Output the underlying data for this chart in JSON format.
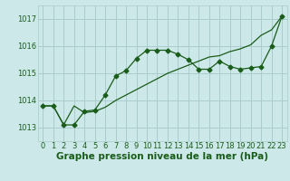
{
  "bg_color": "#cce8e8",
  "grid_color": "#aacccc",
  "line_color": "#1a5c1a",
  "text_color": "#1a5c1a",
  "xlabel": "Graphe pression niveau de la mer (hPa)",
  "ylim": [
    1012.5,
    1017.5
  ],
  "yticks": [
    1013,
    1014,
    1015,
    1016,
    1017
  ],
  "xlim": [
    -0.5,
    23.5
  ],
  "xticks": [
    0,
    1,
    2,
    3,
    4,
    5,
    6,
    7,
    8,
    9,
    10,
    11,
    12,
    13,
    14,
    15,
    16,
    17,
    18,
    19,
    20,
    21,
    22,
    23
  ],
  "series1_x": [
    0,
    1,
    2,
    3,
    4,
    5,
    6,
    7,
    8,
    9,
    10,
    11,
    12,
    13,
    14,
    15,
    16,
    17,
    18,
    19,
    20,
    21,
    22,
    23
  ],
  "series1_y": [
    1013.8,
    1013.8,
    1013.1,
    1013.1,
    1013.6,
    1013.65,
    1014.2,
    1014.9,
    1015.1,
    1015.55,
    1015.85,
    1015.85,
    1015.85,
    1015.7,
    1015.5,
    1015.15,
    1015.15,
    1015.45,
    1015.25,
    1015.15,
    1015.2,
    1015.25,
    1016.0,
    1017.1
  ],
  "series2_x": [
    0,
    1,
    2,
    3,
    4,
    5,
    6,
    7,
    8,
    9,
    10,
    11,
    12,
    13,
    14,
    15,
    16,
    17,
    18,
    19,
    20,
    21,
    22,
    23
  ],
  "series2_y": [
    1013.8,
    1013.8,
    1013.1,
    1013.8,
    1013.55,
    1013.6,
    1013.75,
    1014.0,
    1014.2,
    1014.4,
    1014.6,
    1014.8,
    1015.0,
    1015.15,
    1015.3,
    1015.45,
    1015.6,
    1015.65,
    1015.8,
    1015.9,
    1016.05,
    1016.4,
    1016.6,
    1017.1
  ],
  "tick_fontsize": 6,
  "label_fontsize": 7.5
}
